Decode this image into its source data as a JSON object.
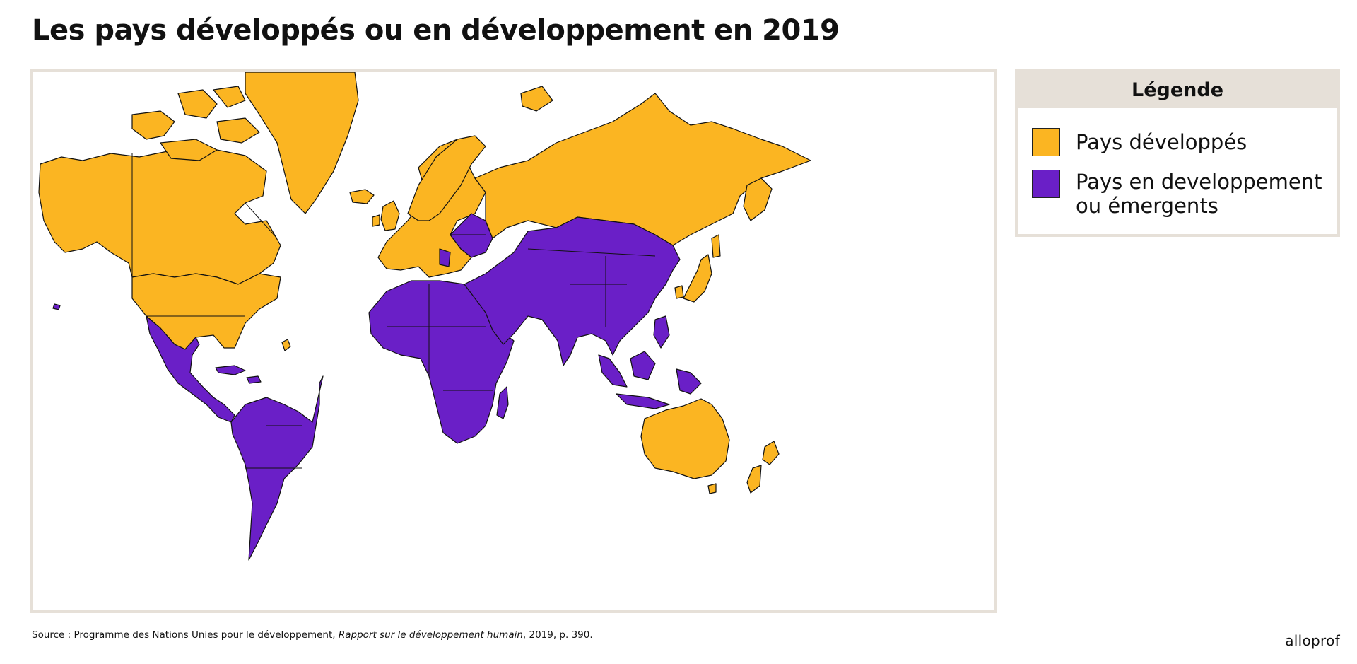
{
  "title": "Les pays développés ou en développement en 2019",
  "legend": {
    "heading": "Légende",
    "items": [
      {
        "label": "Pays développés",
        "color": "#fbb522"
      },
      {
        "label_line1": "Pays en developpement",
        "label_line2": "ou émergents",
        "color": "#6a1fc7"
      }
    ]
  },
  "source": {
    "prefix": "Source : Programme des Nations Unies pour le développement, ",
    "publication": "Rapport sur le développement humain",
    "suffix": ", 2019, p. 390."
  },
  "brand": "alloprof",
  "colors": {
    "developed": "#fbb522",
    "developing": "#6a1fc7",
    "frame": "#e6e0d8"
  }
}
